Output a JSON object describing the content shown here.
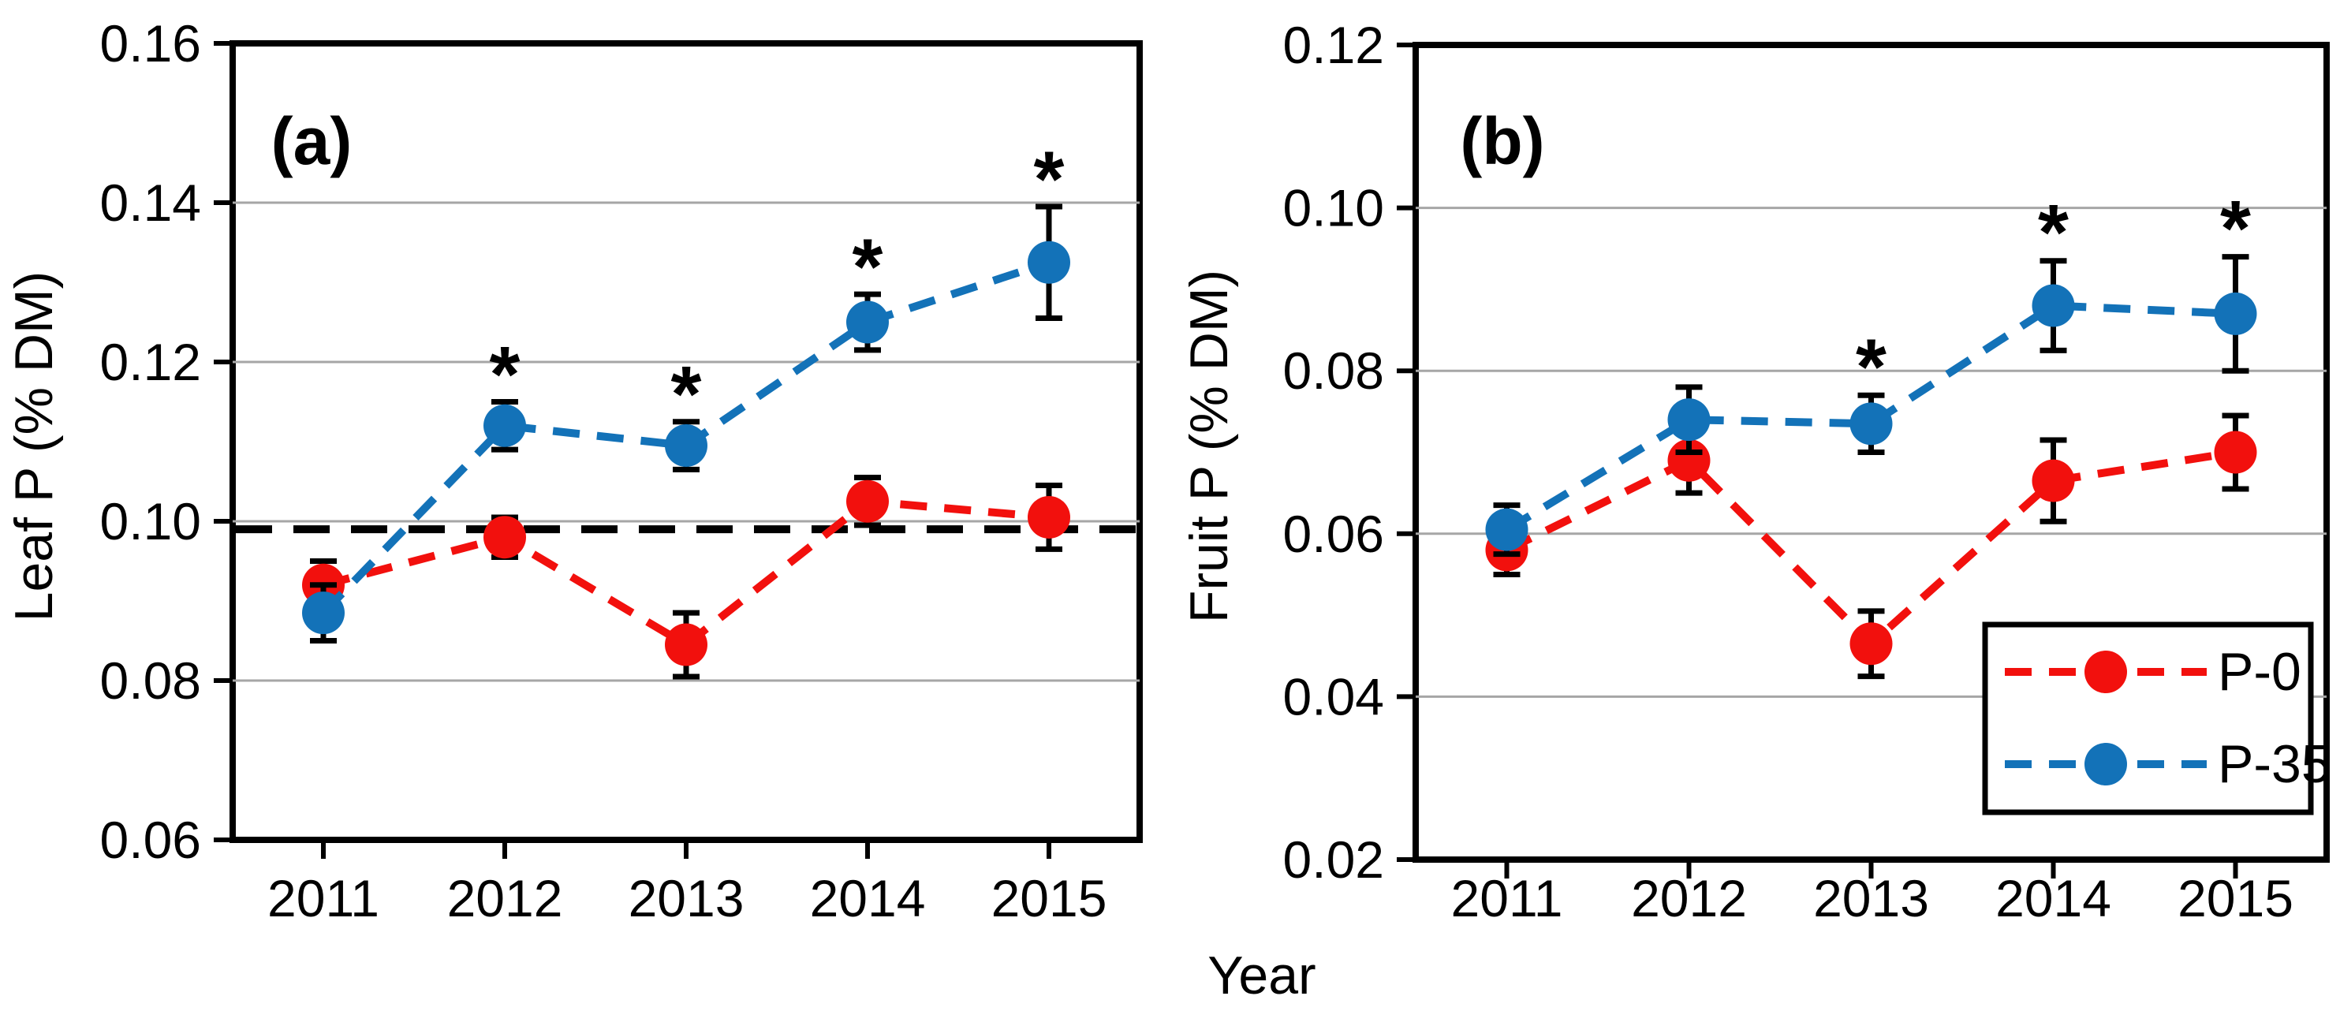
{
  "figure": {
    "year_axis_label": "Year",
    "significance_marker": "*",
    "background": "#ffffff"
  },
  "colors": {
    "p0_red": "#f2100d",
    "p35_blue": "#1372b8",
    "gridline": "#a6a6a6",
    "axis": "#000000",
    "significance": "#000000",
    "reference_line": "#000000"
  },
  "legend": {
    "items": [
      {
        "label": "P-0"
      },
      {
        "label": "P-35"
      }
    ]
  },
  "chart_data": [
    {
      "type": "line",
      "panel_label": "(a)",
      "ylabel": "Leaf P (% DM)",
      "xlabel": "Year",
      "categories": [
        "2011",
        "2012",
        "2013",
        "2014",
        "2015"
      ],
      "ylim": [
        0.06,
        0.16
      ],
      "ytick_step": 0.02,
      "ytick_labels": [
        "0.06",
        "0.08",
        "0.10",
        "0.12",
        "0.14",
        "0.16"
      ],
      "grid": true,
      "legend_position": "none",
      "reference_line": {
        "value": 0.099,
        "style": "dashed",
        "color": "#000000"
      },
      "series": [
        {
          "name": "P-0",
          "color": "#f2100d",
          "marker": "circle",
          "linestyle": "dashed",
          "values": [
            0.092,
            0.098,
            0.0845,
            0.1025,
            0.1005
          ],
          "errors": [
            0.003,
            0.0025,
            0.004,
            0.003,
            0.004
          ],
          "significant": [
            false,
            false,
            false,
            false,
            false
          ]
        },
        {
          "name": "P-35",
          "color": "#1372b8",
          "marker": "circle",
          "linestyle": "dashed",
          "values": [
            0.0885,
            0.112,
            0.1095,
            0.125,
            0.1325
          ],
          "errors": [
            0.0035,
            0.003,
            0.003,
            0.0035,
            0.007
          ],
          "significant": [
            false,
            true,
            true,
            true,
            true
          ]
        }
      ]
    },
    {
      "type": "line",
      "panel_label": "(b)",
      "ylabel": "Fruit P (% DM)",
      "xlabel": "Year",
      "categories": [
        "2011",
        "2012",
        "2013",
        "2014",
        "2015"
      ],
      "ylim": [
        0.02,
        0.12
      ],
      "ytick_step": 0.02,
      "ytick_labels": [
        "0.02",
        "0.04",
        "0.06",
        "0.08",
        "0.10",
        "0.12"
      ],
      "grid": true,
      "legend_position": "bottom-right",
      "reference_line": null,
      "series": [
        {
          "name": "P-0",
          "color": "#f2100d",
          "marker": "circle",
          "linestyle": "dashed",
          "values": [
            0.058,
            0.069,
            0.0465,
            0.0665,
            0.07
          ],
          "errors": [
            0.003,
            0.004,
            0.004,
            0.005,
            0.0045
          ],
          "significant": [
            false,
            false,
            false,
            false,
            false
          ]
        },
        {
          "name": "P-35",
          "color": "#1372b8",
          "marker": "circle",
          "linestyle": "dashed",
          "values": [
            0.0605,
            0.074,
            0.0735,
            0.088,
            0.087
          ],
          "errors": [
            0.003,
            0.004,
            0.0035,
            0.0055,
            0.007
          ],
          "significant": [
            false,
            false,
            true,
            true,
            true
          ]
        }
      ]
    }
  ]
}
